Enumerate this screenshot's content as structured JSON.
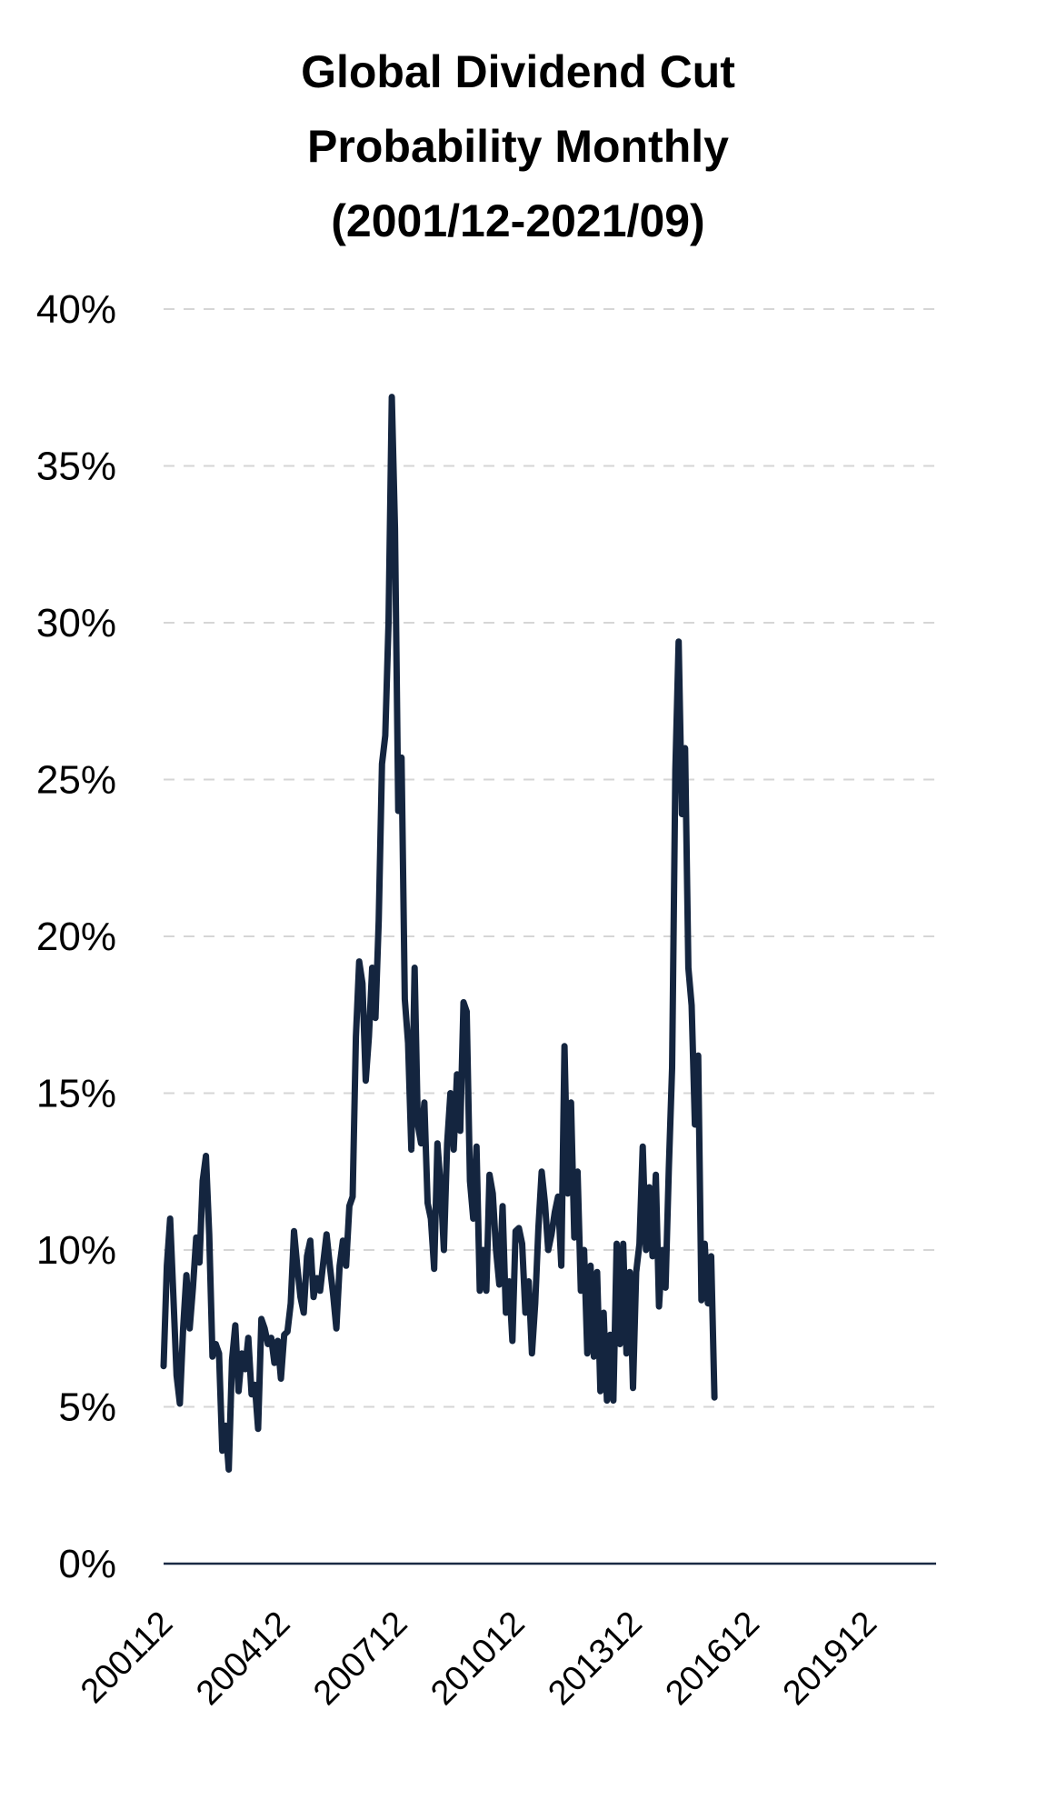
{
  "chart_data": {
    "type": "line",
    "title_lines": [
      "Global Dividend Cut",
      "Probability Monthly",
      "(2001/12-2021/09)"
    ],
    "xlabel": "",
    "ylabel": "",
    "ylim": [
      0,
      40
    ],
    "y_ticks": [
      0,
      5,
      10,
      15,
      20,
      25,
      30,
      35,
      40
    ],
    "y_tick_labels": [
      "0%",
      "5%",
      "10%",
      "15%",
      "20%",
      "25%",
      "30%",
      "35%",
      "40%"
    ],
    "x_tick_labels": [
      "200112",
      "200412",
      "200712",
      "201012",
      "201312",
      "201612",
      "201912"
    ],
    "x_start": "2001-12",
    "x_end": "2021-09",
    "grid": true,
    "line_color": "#14253f",
    "series": [
      {
        "name": "",
        "points": [
          [
            "2001-12",
            6.3
          ],
          [
            "2002-01",
            9.5
          ],
          [
            "2002-02",
            11.0
          ],
          [
            "2002-03",
            8.5
          ],
          [
            "2002-04",
            6.0
          ],
          [
            "2002-05",
            5.1
          ],
          [
            "2002-06",
            7.5
          ],
          [
            "2002-07",
            9.2
          ],
          [
            "2002-08",
            7.5
          ],
          [
            "2002-09",
            8.8
          ],
          [
            "2002-10",
            10.4
          ],
          [
            "2002-11",
            9.6
          ],
          [
            "2002-12",
            12.2
          ],
          [
            "2002-13",
            13.0
          ],
          [
            "2003-02",
            10.5
          ],
          [
            "2003-03",
            6.6
          ],
          [
            "2003-04",
            7.0
          ],
          [
            "2003-05",
            6.7
          ],
          [
            "2003-06",
            3.6
          ],
          [
            "2003-07",
            4.4
          ],
          [
            "2003-08",
            3.0
          ],
          [
            "2003-09",
            6.5
          ],
          [
            "2003-10",
            7.6
          ],
          [
            "2003-11",
            5.5
          ],
          [
            "2003-12",
            6.7
          ],
          [
            "2004-01",
            6.2
          ],
          [
            "2004-02",
            7.2
          ],
          [
            "2004-03",
            5.4
          ],
          [
            "2004-04",
            5.7
          ],
          [
            "2004-05",
            4.3
          ],
          [
            "2004-06",
            7.8
          ],
          [
            "2004-07",
            7.5
          ],
          [
            "2004-08",
            7.0
          ],
          [
            "2004-09",
            7.2
          ],
          [
            "2004-10",
            6.4
          ],
          [
            "2004-11",
            7.1
          ],
          [
            "2004-12",
            5.9
          ],
          [
            "2005-01",
            7.3
          ],
          [
            "2005-02",
            7.4
          ],
          [
            "2005-03",
            8.3
          ],
          [
            "2005-04",
            10.6
          ],
          [
            "2005-05",
            9.5
          ],
          [
            "2005-06",
            8.5
          ],
          [
            "2005-07",
            8.0
          ],
          [
            "2005-08",
            9.8
          ],
          [
            "2005-09",
            10.3
          ],
          [
            "2005-10",
            8.5
          ],
          [
            "2005-11",
            9.1
          ],
          [
            "2005-12",
            8.7
          ],
          [
            "2006-01",
            9.6
          ],
          [
            "2006-02",
            10.5
          ],
          [
            "2006-03",
            9.5
          ],
          [
            "2006-04",
            8.6
          ],
          [
            "2006-05",
            7.5
          ],
          [
            "2006-06",
            9.5
          ],
          [
            "2006-07",
            10.3
          ],
          [
            "2006-08",
            9.5
          ],
          [
            "2006-09",
            11.4
          ],
          [
            "2006-10",
            11.7
          ],
          [
            "2006-11",
            16.8
          ],
          [
            "2006-12",
            19.2
          ],
          [
            "2007-01",
            18.5
          ],
          [
            "2007-02",
            15.4
          ],
          [
            "2007-03",
            16.8
          ],
          [
            "2007-04",
            19.0
          ],
          [
            "2007-05",
            17.4
          ],
          [
            "2007-06",
            20.5
          ],
          [
            "2007-07",
            25.5
          ],
          [
            "2007-08",
            26.4
          ],
          [
            "2007-09",
            30.0
          ],
          [
            "2007-10",
            37.2
          ],
          [
            "2007-11",
            33.0
          ],
          [
            "2007-12",
            24.0
          ],
          [
            "2008-01",
            25.7
          ],
          [
            "2008-02",
            18.0
          ],
          [
            "2008-03",
            16.6
          ],
          [
            "2008-04",
            13.2
          ],
          [
            "2008-05",
            19.0
          ],
          [
            "2008-06",
            14.0
          ],
          [
            "2008-07",
            13.4
          ],
          [
            "2008-08",
            14.7
          ],
          [
            "2008-09",
            11.5
          ],
          [
            "2008-10",
            11.0
          ],
          [
            "2008-11",
            9.4
          ],
          [
            "2008-12",
            13.4
          ],
          [
            "2009-01",
            12.0
          ],
          [
            "2009-02",
            10.0
          ],
          [
            "2009-03",
            13.4
          ],
          [
            "2009-04",
            15.0
          ],
          [
            "2009-05",
            13.2
          ],
          [
            "2009-06",
            15.6
          ],
          [
            "2009-07",
            13.8
          ],
          [
            "2009-08",
            17.9
          ],
          [
            "2009-09",
            17.6
          ],
          [
            "2009-10",
            12.2
          ],
          [
            "2009-11",
            11.0
          ],
          [
            "2009-12",
            13.3
          ],
          [
            "2010-01",
            8.7
          ],
          [
            "2010-02",
            10.0
          ],
          [
            "2010-03",
            8.7
          ],
          [
            "2010-04",
            12.4
          ],
          [
            "2010-05",
            11.8
          ],
          [
            "2010-06",
            10.0
          ],
          [
            "2010-07",
            8.9
          ],
          [
            "2010-08",
            11.4
          ],
          [
            "2010-09",
            8.0
          ],
          [
            "2010-10",
            9.0
          ],
          [
            "2010-11",
            7.1
          ],
          [
            "2010-12",
            10.6
          ],
          [
            "2011-01",
            10.7
          ],
          [
            "2011-02",
            10.2
          ],
          [
            "2011-03",
            8.0
          ],
          [
            "2011-04",
            9.0
          ],
          [
            "2011-05",
            6.7
          ],
          [
            "2011-06",
            8.3
          ],
          [
            "2011-07",
            10.7
          ],
          [
            "2011-08",
            12.5
          ],
          [
            "2011-09",
            11.5
          ],
          [
            "2011-10",
            10.0
          ],
          [
            "2011-11",
            10.5
          ],
          [
            "2011-12",
            11.2
          ],
          [
            "2012-01",
            11.7
          ],
          [
            "2012-02",
            9.5
          ],
          [
            "2012-03",
            16.5
          ],
          [
            "2012-04",
            11.8
          ],
          [
            "2012-05",
            14.7
          ],
          [
            "2012-06",
            10.4
          ],
          [
            "2012-07",
            12.5
          ],
          [
            "2012-08",
            8.7
          ],
          [
            "2012-09",
            10.0
          ],
          [
            "2012-10",
            6.7
          ],
          [
            "2012-11",
            9.5
          ],
          [
            "2012-12",
            6.6
          ],
          [
            "2013-01",
            9.3
          ],
          [
            "2013-02",
            5.5
          ],
          [
            "2013-03",
            8.0
          ],
          [
            "2013-04",
            5.2
          ],
          [
            "2013-05",
            7.3
          ],
          [
            "2013-06",
            5.2
          ],
          [
            "2013-07",
            10.2
          ],
          [
            "2013-08",
            7.0
          ],
          [
            "2013-09",
            10.2
          ],
          [
            "2013-10",
            6.7
          ],
          [
            "2013-11",
            9.3
          ],
          [
            "2013-12",
            5.6
          ],
          [
            "2014-01",
            9.3
          ],
          [
            "2014-02",
            10.2
          ],
          [
            "2014-03",
            13.3
          ],
          [
            "2014-04",
            10.0
          ],
          [
            "2014-05",
            12.0
          ],
          [
            "2014-06",
            9.8
          ],
          [
            "2014-07",
            12.4
          ],
          [
            "2014-08",
            8.2
          ],
          [
            "2014-09",
            10.0
          ],
          [
            "2014-10",
            8.8
          ],
          [
            "2014-11",
            12.6
          ],
          [
            "2014-12",
            15.8
          ],
          [
            "2015-01",
            25.3
          ],
          [
            "2015-02",
            29.4
          ],
          [
            "2015-03",
            23.9
          ],
          [
            "2015-04",
            26.0
          ],
          [
            "2015-05",
            19.0
          ],
          [
            "2015-06",
            17.8
          ],
          [
            "2015-07",
            14.0
          ],
          [
            "2015-08",
            16.2
          ],
          [
            "2015-09",
            8.4
          ],
          [
            "2015-10",
            10.2
          ],
          [
            "2015-11",
            8.3
          ],
          [
            "2015-12",
            9.8
          ],
          [
            "2016-01",
            5.3
          ]
        ]
      }
    ]
  }
}
